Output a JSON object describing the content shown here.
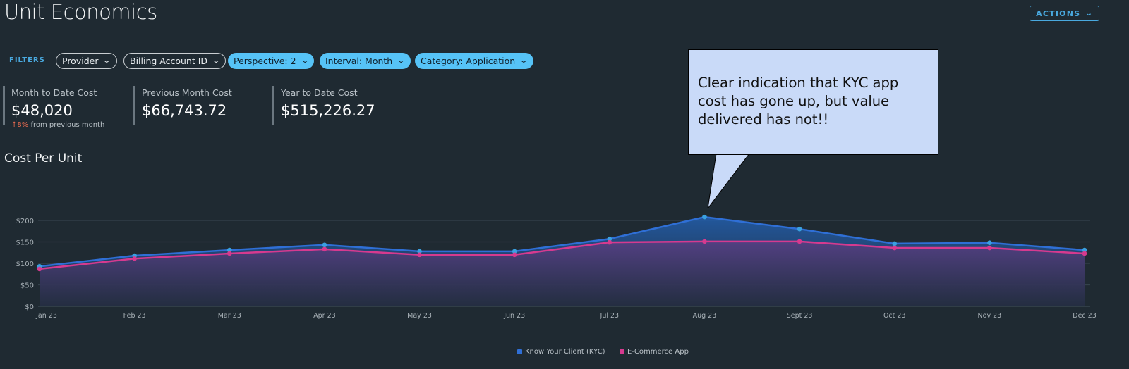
{
  "header": {
    "title": "Unit Economics",
    "actions_label": "ACTIONS"
  },
  "filters": {
    "label": "FILTERS",
    "chips": [
      {
        "label": "Provider",
        "active": false
      },
      {
        "label": "Billing Account ID",
        "active": false
      },
      {
        "label": "Perspective: 2",
        "active": true
      },
      {
        "label": "Interval: Month",
        "active": true
      },
      {
        "label": "Category: Application",
        "active": true
      }
    ]
  },
  "kpis": [
    {
      "label": "Month to Date Cost",
      "value": "$48,020",
      "delta": "8%",
      "delta_direction": "up",
      "delta_text": "from previous month"
    },
    {
      "label": "Previous Month Cost",
      "value": "$66,743.72"
    },
    {
      "label": "Year to Date Cost",
      "value": "$515,226.27"
    }
  ],
  "callout": {
    "text": "Clear indication that KYC app cost has gone up, but value delivered has not!!"
  },
  "chart_data": {
    "type": "area",
    "title": "Cost Per Unit",
    "categories": [
      "Jan 23",
      "Feb 23",
      "Mar 23",
      "Apr 23",
      "May 23",
      "Jun 23",
      "Jul 23",
      "Aug 23",
      "Sept 23",
      "Oct 23",
      "Nov 23",
      "Dec 23"
    ],
    "y_ticks": [
      "$0",
      "$50",
      "$100",
      "$150",
      "$200"
    ],
    "ylim": [
      0,
      200
    ],
    "grid": true,
    "legend_position": "bottom",
    "series": [
      {
        "name": "Know Your Client (KYC)",
        "color": "#2f6fd6",
        "values": [
          93,
          118,
          131,
          143,
          128,
          128,
          157,
          208,
          180,
          146,
          148,
          131
        ]
      },
      {
        "name": "E-Commerce App",
        "color": "#d63a8f",
        "values": [
          87,
          111,
          123,
          133,
          120,
          120,
          149,
          151,
          151,
          136,
          136,
          123
        ]
      }
    ]
  }
}
